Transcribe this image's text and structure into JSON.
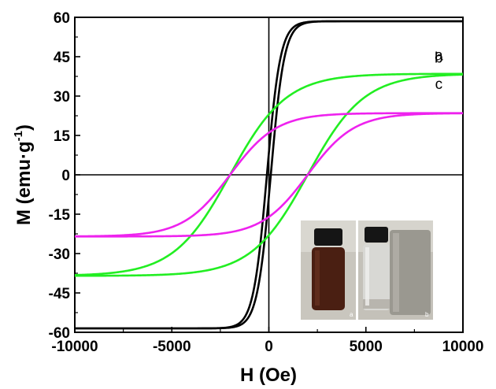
{
  "chart_data": {
    "type": "line",
    "title": "",
    "xlabel": "H  (Oe)",
    "ylabel": "M  (emu·g",
    "ylabel_superscript": "-1",
    "ylabel_close": ")",
    "xlim": [
      -10000,
      10000
    ],
    "ylim": [
      -60,
      60
    ],
    "x_ticks": [
      "-10000",
      "-5000",
      "0",
      "5000",
      "10000"
    ],
    "y_ticks": [
      "-60",
      "-45",
      "-30",
      "-15",
      "0",
      "15",
      "30",
      "45",
      "60"
    ],
    "grid": false,
    "series": [
      {
        "name": "a",
        "color": "#000000",
        "saturation_magnetization": 58.5,
        "remanence": 3,
        "coercivity": 100,
        "field_scale": 700
      },
      {
        "name": "b",
        "color": "#22ee22",
        "saturation_magnetization": 38.5,
        "remanence": 21,
        "coercivity": 2000,
        "field_scale": 2900
      },
      {
        "name": "c",
        "color": "#ee22ee",
        "saturation_magnetization": 23.5,
        "remanence": 14,
        "coercivity": 2000,
        "field_scale": 2400
      }
    ],
    "inset": {
      "description": "photographs of sample vials",
      "captions": [
        "a",
        "b"
      ]
    }
  }
}
